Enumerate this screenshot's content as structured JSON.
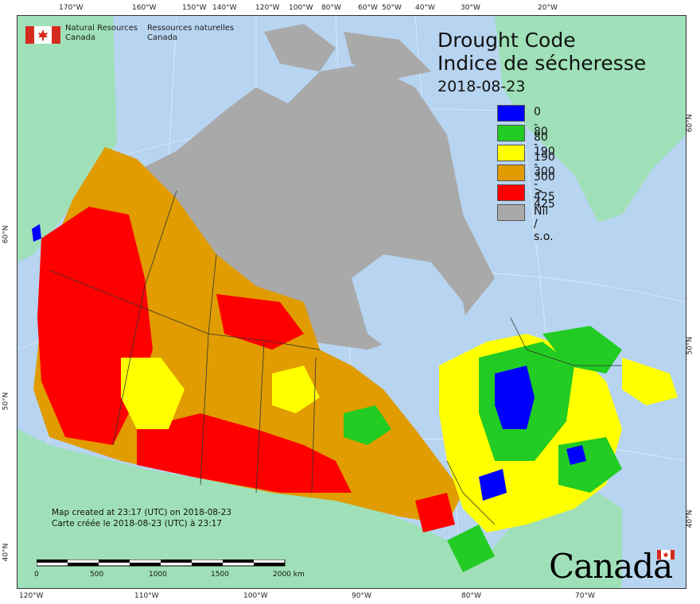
{
  "title": {
    "line1": "Drought Code",
    "line2": "Indice de sécheresse",
    "date": "2018-08-23"
  },
  "legend": [
    {
      "label": "0 - 80",
      "color": "#0000ff"
    },
    {
      "label": "80 - 190",
      "color": "#22cc22"
    },
    {
      "label": "190 - 300",
      "color": "#ffff00"
    },
    {
      "label": "300 - 425",
      "color": "#e09c00"
    },
    {
      "label": "> 425",
      "color": "#ff0000"
    },
    {
      "label": "Nil / s.o.",
      "color": "#a9a9a9"
    }
  ],
  "org": {
    "en_line1": "Natural Resources",
    "en_line2": "Canada",
    "fr_line1": "Ressources naturelles",
    "fr_line2": "Canada"
  },
  "created": {
    "en": "Map created at 23:17 (UTC) on 2018-08-23",
    "fr": "Carte créée le 2018-08-23 (UTC) à 23:17"
  },
  "scale": {
    "labels": [
      "0",
      "500",
      "1000",
      "1500",
      "2000  km"
    ]
  },
  "wordmark": "Canada",
  "axis_ticks": {
    "top": [
      "170°W",
      "160°W",
      "150°W",
      "140°W",
      "120°W",
      "100°W",
      "80°W",
      "60°W",
      "50°W",
      "40°W",
      "30°W",
      "20°W"
    ],
    "bottom": [
      "120°W",
      "110°W",
      "100°W",
      "90°W",
      "80°W",
      "70°W"
    ],
    "left": [
      "60°N",
      "50°N",
      "40°N"
    ],
    "right": [
      "60°N",
      "50°N",
      "40°N"
    ]
  },
  "colors": {
    "water": "#b7d4f0",
    "foreign_land": "#9fe0b8",
    "nil": "#a9a9a9",
    "dc_0_80": "#0000ff",
    "dc_80_190": "#22cc22",
    "dc_190_300": "#ffff00",
    "dc_300_425": "#e09c00",
    "dc_gt_425": "#ff0000"
  }
}
